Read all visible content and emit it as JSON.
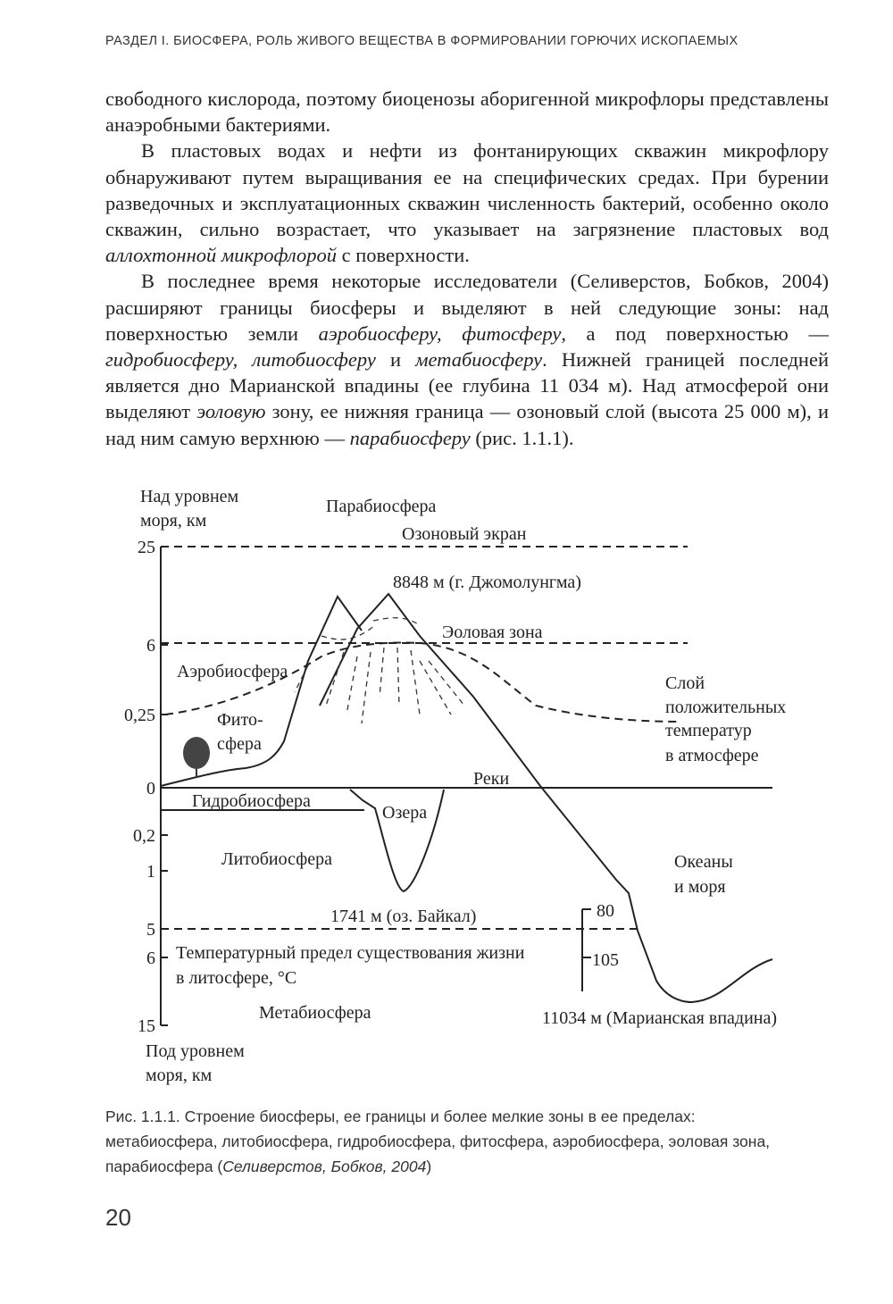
{
  "header": {
    "title": "РАЗДЕЛ I. БИОСФЕРА, РОЛЬ ЖИВОГО ВЕЩЕСТВА В ФОРМИРОВАНИИ ГОРЮЧИХ ИСКОПАЕМЫХ"
  },
  "body": {
    "paragraphs": [
      [
        "свободного кислорода, поэтому биоценозы аборигенной микрофлоры представлены анаэробными бактериями."
      ],
      [
        "В пластовых водах и нефти из фонтанирующих скважин микрофлору обнаруживают путем выращивания ее на специфических средах. При бурении разведочных и эксплуатационных скважин численность бактерий, особенно около скважин, сильно возрастает, что указывает на загрязнение пластовых вод ",
        {
          "italic": "аллохтонной микрофлорой"
        },
        " с поверхности."
      ],
      [
        "В последнее время некоторые исследователи (Селиверстов, Бобков, 2004) расширяют границы биосферы и выделяют в ней следующие зоны: над поверхностью земли ",
        {
          "italic": "аэробиосферу, фитосферу"
        },
        ", а под поверхностью — ",
        {
          "italic": "гидробиосферу, литобиосферу"
        },
        " и ",
        {
          "italic": "метабиосферу"
        },
        ". Нижней границей последней является дно Марианской впадины (ее глубина 11 034 м). Над атмосферой они выделяют ",
        {
          "italic": "эоловую"
        },
        " зону, ее нижняя граница — озоновый слой (высота 25 000 м), и над ним самую верхнюю — ",
        {
          "italic": "парабиосферу"
        },
        " (рис. 1.1.1)."
      ]
    ]
  },
  "figure": {
    "axis_top": [
      "Над уровнем",
      "моря, км"
    ],
    "axis_bottom": [
      "Под уровнем",
      "моря, км"
    ],
    "ticks": [
      "25",
      "6",
      "0,25",
      "0",
      "0,2",
      "1",
      "5",
      "6",
      "15"
    ],
    "labels": [
      "Парабиосфера",
      "Озоновый экран",
      "8848 м (г. Джомолунгма)",
      "Эоловая зона",
      "Аэробиосфера",
      "Фито-",
      "сфера",
      "Слой",
      "положительных",
      "температур",
      "в атмосфере",
      "Реки",
      "Гидробиосфера",
      "Озера",
      "Литобиосфера",
      "Океаны",
      "и моря",
      "1741 м (оз. Байкал)",
      "80",
      "Температурный предел существования жизни",
      "в литосфере, °С",
      "105",
      "Метабиосфера",
      "11034 м (Марианская впадина)"
    ],
    "caption": [
      "Рис. 1.1.1. Строение биосферы, ее границы и более мелкие зоны в ее пределах: метабиосфера, литобиосфера, гидробиосфера, фитосфера, аэробиосфера, эоловая зона, парабиосфера (",
      {
        "italic": "Селиверстов, Бобков, 2004"
      },
      ")"
    ]
  },
  "footer": {
    "page_number": "20"
  }
}
